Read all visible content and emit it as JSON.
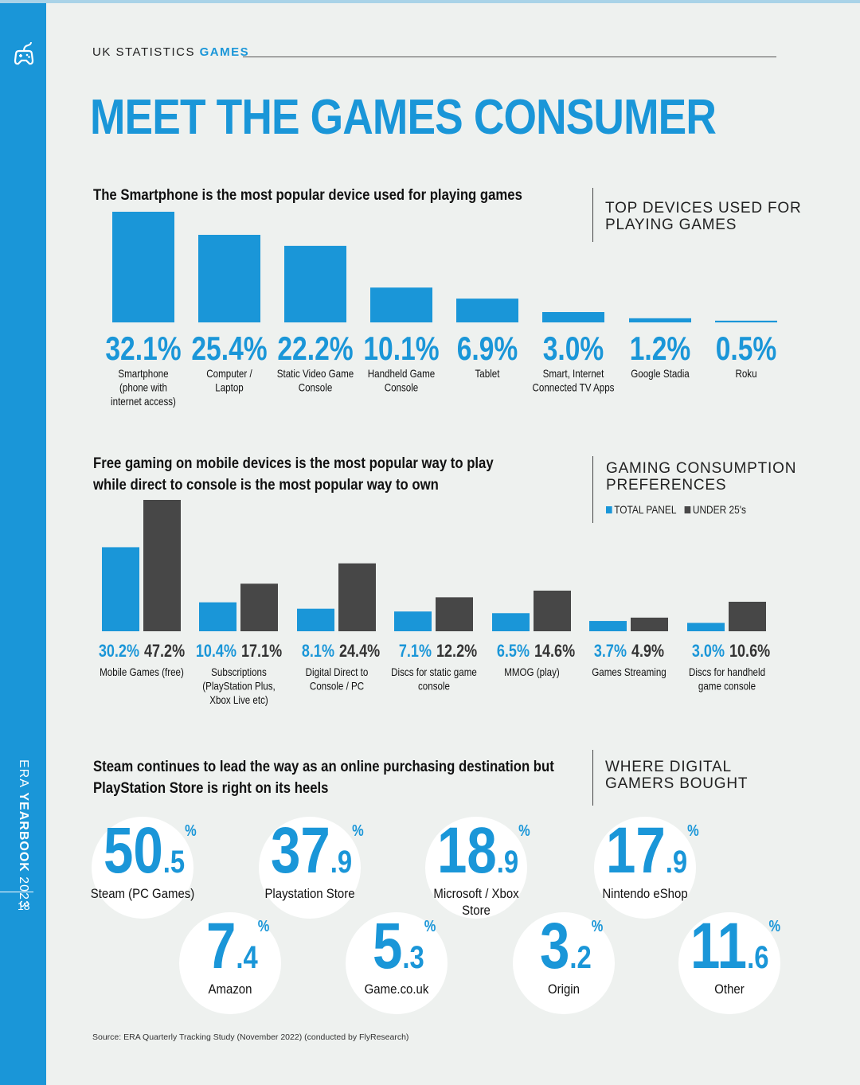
{
  "sidebar": {
    "vertical_text_prefix": "ERA",
    "vertical_text_bold": "YEARBOOK",
    "vertical_text_suffix": "2023",
    "page_number": "18"
  },
  "header": {
    "kicker_prefix": "UK STATISTICS",
    "kicker_accent": "GAMES",
    "title": "MEET THE GAMES CONSUMER"
  },
  "colors": {
    "accent": "#1a96d8",
    "dark": "#474747",
    "background": "#eef1ef"
  },
  "section1": {
    "headline": "The Smartphone is the most popular device used for playing games",
    "side_title_line1": "TOP DEVICES USED FOR",
    "side_title_line2": "PLAYING GAMES"
  },
  "section2": {
    "headline_line1": "Free gaming on mobile devices is the most popular way to play",
    "headline_line2": "while direct to console is the most popular way to own",
    "side_title_line1": "GAMING CONSUMPTION",
    "side_title_line2": "PREFERENCES",
    "legend": [
      "TOTAL PANEL",
      "UNDER 25's"
    ]
  },
  "section3": {
    "headline_line1": "Steam continues to lead the way as an online purchasing destination but",
    "headline_line2": "PlayStation Store is right on its heels",
    "side_title_line1": "WHERE DIGITAL",
    "side_title_line2": "GAMERS BOUGHT"
  },
  "chart_data": [
    {
      "type": "bar",
      "title": "TOP DEVICES USED FOR PLAYING GAMES",
      "categories": [
        [
          "Smartphone",
          "(phone with",
          "internet access)"
        ],
        [
          "Computer /",
          "Laptop"
        ],
        [
          "Static Video Game",
          "Console"
        ],
        [
          "Handheld Game",
          "Console"
        ],
        [
          "Tablet"
        ],
        [
          "Smart, Internet",
          "Connected TV Apps"
        ],
        [
          "Google Stadia"
        ],
        [
          "Roku"
        ]
      ],
      "values": [
        32.1,
        25.4,
        22.2,
        10.1,
        6.9,
        3.0,
        1.2,
        0.5
      ],
      "value_labels": [
        "32.1%",
        "25.4%",
        "22.2%",
        "10.1%",
        "6.9%",
        "3.0%",
        "1.2%",
        "0.5%"
      ],
      "grid": false
    },
    {
      "type": "bar",
      "title": "GAMING CONSUMPTION PREFERENCES",
      "categories": [
        [
          "Mobile Games (free)"
        ],
        [
          "Subscriptions",
          "(PlayStation Plus,",
          "Xbox Live etc)"
        ],
        [
          "Digital Direct to",
          "Console / PC"
        ],
        [
          "Discs for static game",
          "console"
        ],
        [
          "MMOG (play)"
        ],
        [
          "Games Streaming"
        ],
        [
          "Discs for handheld",
          "game console"
        ]
      ],
      "series": [
        {
          "name": "TOTAL PANEL",
          "values": [
            30.2,
            10.4,
            8.1,
            7.1,
            6.5,
            3.7,
            3.0
          ],
          "value_labels": [
            "30.2%",
            "10.4%",
            "8.1%",
            "7.1%",
            "6.5%",
            "3.7%",
            "3.0%"
          ]
        },
        {
          "name": "UNDER 25's",
          "values": [
            47.2,
            17.1,
            24.4,
            12.2,
            14.6,
            4.9,
            10.6
          ],
          "value_labels": [
            "47.2%",
            "17.1%",
            "24.4%",
            "12.2%",
            "14.6%",
            "4.9%",
            "10.6%"
          ]
        }
      ],
      "legend": "top-right",
      "grid": false
    },
    {
      "type": "table",
      "title": "WHERE DIGITAL GAMERS BOUGHT",
      "items": [
        {
          "int": "50",
          "dec": ".5",
          "pct": "%",
          "value": 50.5,
          "label": [
            "Steam (PC Games)"
          ]
        },
        {
          "int": "37",
          "dec": ".9",
          "pct": "%",
          "value": 37.9,
          "label": [
            "Playstation Store"
          ]
        },
        {
          "int": "18",
          "dec": ".9",
          "pct": "%",
          "value": 18.9,
          "label": [
            "Microsoft / Xbox",
            "Store"
          ]
        },
        {
          "int": "17",
          "dec": ".9",
          "pct": "%",
          "value": 17.9,
          "label": [
            "Nintendo eShop"
          ]
        },
        {
          "int": "7",
          "dec": ".4",
          "pct": "%",
          "value": 7.4,
          "label": [
            "Amazon"
          ]
        },
        {
          "int": "5",
          "dec": ".3",
          "pct": "%",
          "value": 5.3,
          "label": [
            "Game.co.uk"
          ]
        },
        {
          "int": "3",
          "dec": ".2",
          "pct": "%",
          "value": 3.2,
          "label": [
            "Origin"
          ]
        },
        {
          "int": "11",
          "dec": ".6",
          "pct": "%",
          "value": 11.6,
          "label": [
            "Other"
          ]
        }
      ]
    }
  ],
  "source": "Source: ERA Quarterly Tracking Study  (November 2022) (conducted by FlyResearch)"
}
